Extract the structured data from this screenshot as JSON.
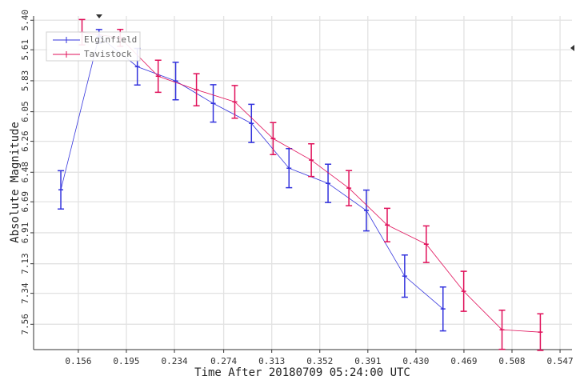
{
  "chart_data": {
    "type": "errorbar-line",
    "xlabel": "Time After 20180709 05:24:00 UTC",
    "ylabel": "Absolute Magnitude",
    "xlim": [
      0.1197,
      0.5567
    ],
    "ylim": [
      7.74,
      5.37
    ],
    "y_inverted": true,
    "grid": true,
    "legend": "upper left",
    "xticks": [
      0.156,
      0.195,
      0.234,
      0.274,
      0.313,
      0.352,
      0.391,
      {
        "value": 0.43,
        "label": "0.430"
      },
      0.469,
      0.508,
      0.547
    ],
    "yticks": [
      {
        "value": 5.4,
        "label": "5.40"
      },
      5.61,
      5.83,
      6.05,
      6.26,
      6.48,
      6.69,
      6.91,
      7.13,
      7.34,
      7.56
    ],
    "series": [
      {
        "name": "Elginfield",
        "color": "#3333dd",
        "x": [
          0.1418,
          0.1728,
          0.2039,
          0.235,
          0.2655,
          0.2965,
          0.327,
          0.3587,
          0.3898,
          0.4209,
          0.452
        ],
        "values": [
          6.605,
          5.514,
          5.73,
          5.832,
          5.991,
          6.133,
          6.451,
          6.559,
          6.752,
          7.218,
          7.451
        ],
        "errors": [
          0.136,
          0.048,
          0.13,
          0.133,
          0.133,
          0.136,
          0.139,
          0.136,
          0.145,
          0.15,
          0.156
        ]
      },
      {
        "name": "Tavistock",
        "color": "#e0105a",
        "x": [
          0.159,
          0.19,
          0.2208,
          0.2519,
          0.283,
          0.3141,
          0.3451,
          0.3756,
          0.4067,
          0.4384,
          0.4688,
          0.4999,
          0.531
        ],
        "values": [
          5.485,
          5.525,
          5.798,
          5.894,
          5.98,
          6.241,
          6.394,
          6.593,
          6.855,
          6.991,
          7.326,
          7.599,
          7.616
        ],
        "errors": [
          0.09,
          0.06,
          0.114,
          0.114,
          0.116,
          0.114,
          0.116,
          0.125,
          0.119,
          0.13,
          0.142,
          0.139,
          0.13
        ]
      }
    ]
  }
}
